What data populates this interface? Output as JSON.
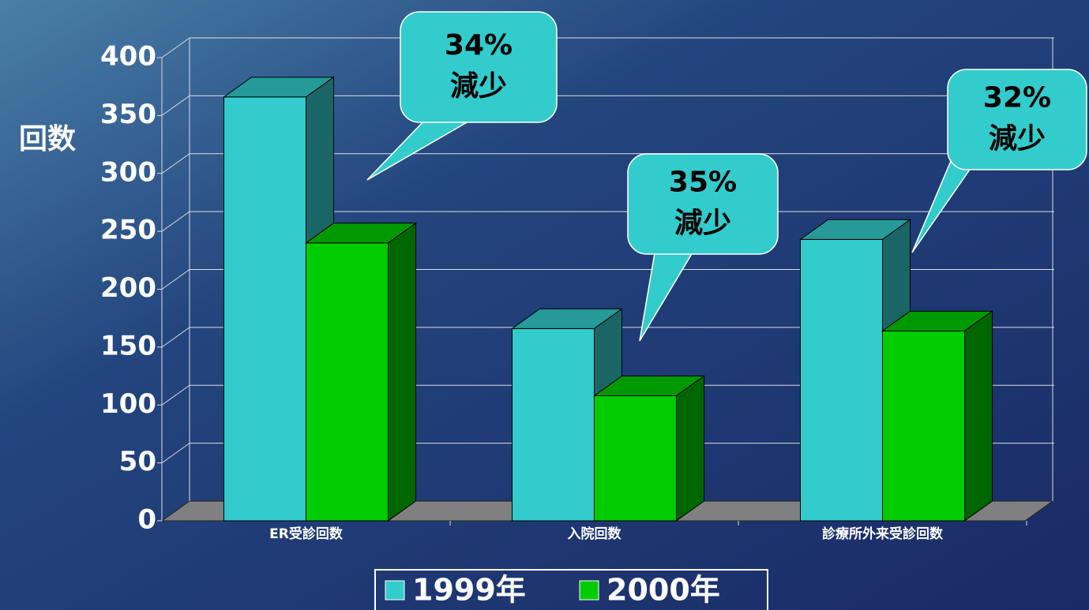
{
  "chart_data": {
    "type": "bar3d",
    "y_label": "回数",
    "categories": [
      "ER受診回数",
      "入院回数",
      "診療所外来受診回数"
    ],
    "series": [
      {
        "name": "1999年",
        "color": "#33cccc",
        "values": [
          366,
          166,
          243
        ]
      },
      {
        "name": "2000年",
        "color": "#00cc00",
        "values": [
          240,
          108,
          164
        ]
      }
    ],
    "ylim": [
      0,
      400
    ],
    "yticks": [
      0,
      50,
      100,
      150,
      200,
      250,
      300,
      350,
      400
    ],
    "grid": true,
    "annotations": [
      {
        "text": [
          "34%",
          "減少"
        ]
      },
      {
        "text": [
          "35%",
          "減少"
        ]
      },
      {
        "text": [
          "32%",
          "減少"
        ]
      }
    ]
  }
}
